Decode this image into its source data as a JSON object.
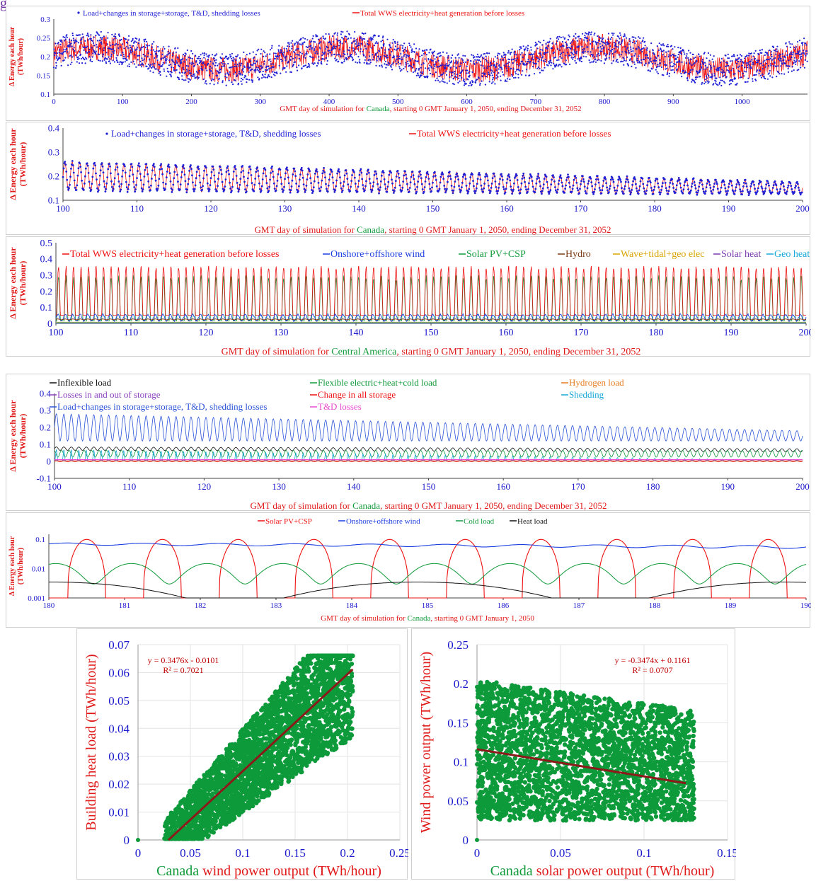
{
  "figure": {
    "title_fragment": "g"
  },
  "colors": {
    "load": "#1f1fd6",
    "gen": "#ee1111",
    "wind": "#1c3fe0",
    "solar": "#109a3a",
    "hydro": "#7a3a14",
    "wave": "#d9a400",
    "solarheat": "#7b3bb0",
    "geoheat": "#18a8d8",
    "inflex": "#111111",
    "flex": "#109a3a",
    "hydrogen": "#e67e22",
    "losses": "#8a3fc0",
    "storage": "#ee1111",
    "shedding": "#18a8d8",
    "lcs": "#2a52d8",
    "tdl": "#e84ad0",
    "cold": "#109a3a",
    "heat": "#111111",
    "scatter": "#0d9a3a",
    "trend": "#8b1a1a"
  },
  "chart_data": [
    {
      "type": "line",
      "panel": "p1",
      "series": [
        {
          "name": "Load+changes in storage+storage, T&D, shedding losses",
          "color_key": "load",
          "marker": "dot"
        },
        {
          "name": "Total WWS electricity+heat generation before losses",
          "color_key": "gen"
        }
      ],
      "ylabel": "Δ Energy each hour (TWh/hour)",
      "xlabel_parts": [
        "GMT day of simulation for ",
        "Canada",
        ", starting 0 GMT January 1, 2050, ending December 31, 2052"
      ],
      "xlim": [
        0,
        1095
      ],
      "ylim": [
        0.1,
        0.3
      ],
      "xticks": [
        "0",
        "100",
        "200",
        "300",
        "400",
        "500",
        "600",
        "700",
        "800",
        "900",
        "1000"
      ],
      "yticks": [
        "0.1",
        "0.15",
        "0.2",
        "0.25",
        "0.3"
      ]
    },
    {
      "type": "line",
      "panel": "p2",
      "series": [
        {
          "name": "Load+changes in storage+storage, T&D, shedding losses",
          "color_key": "load",
          "marker": "dot"
        },
        {
          "name": "Total WWS electricity+heat generation before losses",
          "color_key": "gen"
        }
      ],
      "ylabel": "Δ Energy each hour (TWh/hour)",
      "xlabel_parts": [
        "GMT day of simulation for ",
        "Canada",
        ", starting 0 GMT January 1, 2050, ending December 31, 2052"
      ],
      "xlim": [
        100,
        200
      ],
      "ylim": [
        0.1,
        0.4
      ],
      "xticks": [
        "100",
        "110",
        "120",
        "130",
        "140",
        "150",
        "160",
        "170",
        "180",
        "190",
        "200"
      ],
      "yticks": [
        "0.1",
        "0.2",
        "0.3",
        "0.4"
      ]
    },
    {
      "type": "line",
      "panel": "p3",
      "series": [
        {
          "name": "Total WWS electricity+heat generation before losses",
          "color_key": "gen"
        },
        {
          "name": "Onshore+offshore wind",
          "color_key": "wind"
        },
        {
          "name": "Solar PV+CSP",
          "color_key": "solar"
        },
        {
          "name": "Hydro",
          "color_key": "hydro"
        },
        {
          "name": "Wave+tidal+geo elec",
          "color_key": "wave"
        },
        {
          "name": "Solar heat",
          "color_key": "solarheat"
        },
        {
          "name": "Geo heat",
          "color_key": "geoheat"
        }
      ],
      "ylabel": "Δ Energy each hour (TWh/hour)",
      "xlabel_parts": [
        "GMT day of simulation for ",
        "Central America",
        ", starting 0 GMT January 1, 2050, ending December 31, 2052"
      ],
      "xlim": [
        100,
        200
      ],
      "ylim": [
        0,
        0.5
      ],
      "xticks": [
        "100",
        "110",
        "120",
        "130",
        "140",
        "150",
        "160",
        "170",
        "180",
        "190",
        "200"
      ],
      "yticks": [
        "0",
        "0.1",
        "0.2",
        "0.3",
        "0.4",
        "0.5"
      ]
    },
    {
      "type": "line",
      "panel": "p4",
      "series": [
        {
          "name": "Inflexible load",
          "color_key": "inflex"
        },
        {
          "name": "Flexible electric+heat+cold load",
          "color_key": "flex"
        },
        {
          "name": "Hydrogen load",
          "color_key": "hydrogen"
        },
        {
          "name": "Losses in and out of storage",
          "color_key": "losses"
        },
        {
          "name": "Change in all storage",
          "color_key": "storage"
        },
        {
          "name": "Shedding",
          "color_key": "shedding"
        },
        {
          "name": "Load+changes in storage+storage, T&D, shedding losses",
          "color_key": "lcs"
        },
        {
          "name": "T&D losses",
          "color_key": "tdl"
        }
      ],
      "ylabel": "Δ Energy each hour (TWh/hour)",
      "xlabel_parts": [
        "GMT day of simulation for ",
        "Canada",
        ", starting 0 GMT January 1, 2050, ending December 31, 2052"
      ],
      "xlim": [
        100,
        200
      ],
      "ylim": [
        -0.1,
        0.4
      ],
      "xticks": [
        "100",
        "110",
        "120",
        "130",
        "140",
        "150",
        "160",
        "170",
        "180",
        "190",
        "200"
      ],
      "yticks": [
        "-0.1",
        "0",
        "0.1",
        "0.2",
        "0.3",
        "0.4"
      ]
    },
    {
      "type": "line",
      "panel": "p5",
      "yscale": "log",
      "series": [
        {
          "name": "Solar PV+CSP",
          "color_key": "gen"
        },
        {
          "name": "Onshore+offshore wind",
          "color_key": "wind"
        },
        {
          "name": "Cold load",
          "color_key": "cold"
        },
        {
          "name": "Heat load",
          "color_key": "heat"
        }
      ],
      "ylabel": "Δ Energy each hour (TWh/hour)",
      "xlabel_parts": [
        "GMT day of simulation for ",
        "Canada",
        ", starting 0 GMT January 1, 2050"
      ],
      "xlim": [
        180,
        190
      ],
      "ylim": [
        0.001,
        0.15
      ],
      "xticks": [
        "180",
        "181",
        "182",
        "183",
        "184",
        "185",
        "186",
        "187",
        "188",
        "189",
        "190"
      ],
      "yticks": [
        "0.1",
        "0.01",
        "0.001"
      ]
    },
    {
      "type": "scatter",
      "panel": "s1",
      "xlabel_parts": [
        "Canada",
        " wind power output (TWh/hour)"
      ],
      "ylabel": "Building heat load (TWh/hour)",
      "xlim": [
        0,
        0.25
      ],
      "ylim": [
        0,
        0.07
      ],
      "xticks": [
        "0",
        "0.05",
        "0.1",
        "0.15",
        "0.2",
        "0.25"
      ],
      "yticks": [
        "0",
        "0.01",
        "0.02",
        "0.03",
        "0.04",
        "0.05",
        "0.06",
        "0.07"
      ],
      "trend": {
        "slope": 0.3476,
        "intercept": -0.0101,
        "x_range": [
          0.029,
          0.205
        ]
      },
      "equation": "y = 0.3476x - 0.0101",
      "r2": "R² = 0.7021"
    },
    {
      "type": "scatter",
      "panel": "s2",
      "xlabel_parts": [
        "Canada",
        " solar power output (TWh/hour)"
      ],
      "ylabel": "Wind power output (TWh/hour)",
      "xlim": [
        0,
        0.15
      ],
      "ylim": [
        0,
        0.25
      ],
      "xticks": [
        "0",
        "0.05",
        "0.1",
        "0.15"
      ],
      "yticks": [
        "0",
        "0.05",
        "0.1",
        "0.15",
        "0.2",
        "0.25"
      ],
      "trend": {
        "slope": -0.3474,
        "intercept": 0.1161,
        "x_range": [
          0,
          0.125
        ]
      },
      "equation": "y = -0.3474x + 0.1161",
      "r2": "R² = 0.0707"
    }
  ]
}
